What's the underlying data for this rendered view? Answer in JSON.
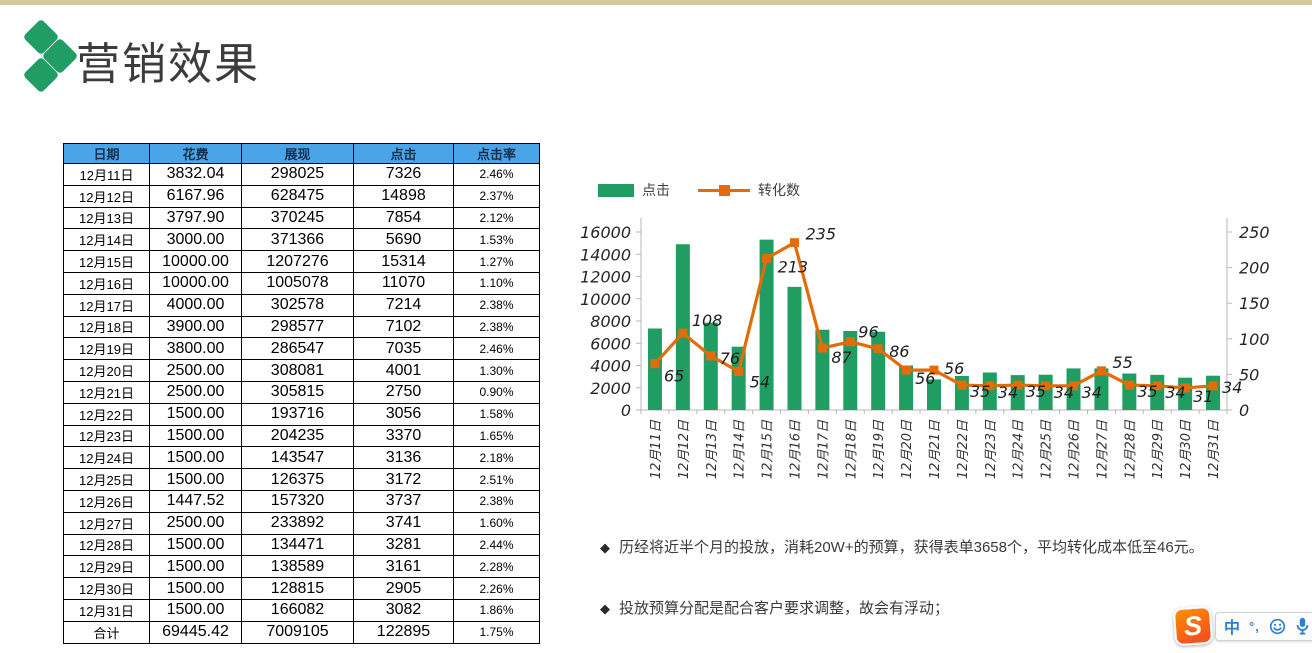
{
  "page": {
    "title": "营销效果"
  },
  "colors": {
    "top_strip": "#d5c89e",
    "accent_green": "#1f9d62",
    "accent_orange": "#e36c0a",
    "header_blue": "#4aa4e8",
    "axis_line": "#b7b7b7"
  },
  "table": {
    "headers": [
      "日期",
      "花费",
      "展现",
      "点击",
      "点击率"
    ],
    "rows": [
      [
        "12月11日",
        "3832.04",
        "298025",
        "7326",
        "2.46%"
      ],
      [
        "12月12日",
        "6167.96",
        "628475",
        "14898",
        "2.37%"
      ],
      [
        "12月13日",
        "3797.90",
        "370245",
        "7854",
        "2.12%"
      ],
      [
        "12月14日",
        "3000.00",
        "371366",
        "5690",
        "1.53%"
      ],
      [
        "12月15日",
        "10000.00",
        "1207276",
        "15314",
        "1.27%"
      ],
      [
        "12月16日",
        "10000.00",
        "1005078",
        "11070",
        "1.10%"
      ],
      [
        "12月17日",
        "4000.00",
        "302578",
        "7214",
        "2.38%"
      ],
      [
        "12月18日",
        "3900.00",
        "298577",
        "7102",
        "2.38%"
      ],
      [
        "12月19日",
        "3800.00",
        "286547",
        "7035",
        "2.46%"
      ],
      [
        "12月20日",
        "2500.00",
        "308081",
        "4001",
        "1.30%"
      ],
      [
        "12月21日",
        "2500.00",
        "305815",
        "2750",
        "0.90%"
      ],
      [
        "12月22日",
        "1500.00",
        "193716",
        "3056",
        "1.58%"
      ],
      [
        "12月23日",
        "1500.00",
        "204235",
        "3370",
        "1.65%"
      ],
      [
        "12月24日",
        "1500.00",
        "143547",
        "3136",
        "2.18%"
      ],
      [
        "12月25日",
        "1500.00",
        "126375",
        "3172",
        "2.51%"
      ],
      [
        "12月26日",
        "1447.52",
        "157320",
        "3737",
        "2.38%"
      ],
      [
        "12月27日",
        "2500.00",
        "233892",
        "3741",
        "1.60%"
      ],
      [
        "12月28日",
        "1500.00",
        "134471",
        "3281",
        "2.44%"
      ],
      [
        "12月29日",
        "1500.00",
        "138589",
        "3161",
        "2.28%"
      ],
      [
        "12月30日",
        "1500.00",
        "128815",
        "2905",
        "2.26%"
      ],
      [
        "12月31日",
        "1500.00",
        "166082",
        "3082",
        "1.86%"
      ]
    ],
    "total_row": [
      "合计",
      "69445.42",
      "7009105",
      "122895",
      "1.75%"
    ]
  },
  "chart_data": {
    "type": "combo",
    "categories": [
      "12月11日",
      "12月12日",
      "12月13日",
      "12月14日",
      "12月15日",
      "12月16日",
      "12月17日",
      "12月18日",
      "12月19日",
      "12月20日",
      "12月21日",
      "12月22日",
      "12月23日",
      "12月24日",
      "12月25日",
      "12月26日",
      "12月27日",
      "12月28日",
      "12月29日",
      "12月30日",
      "12月31日"
    ],
    "series": [
      {
        "name": "点击",
        "type": "bar",
        "axis": "left",
        "color": "#1f9d62",
        "values": [
          7326,
          14898,
          7854,
          5690,
          15314,
          11070,
          7214,
          7102,
          7035,
          4001,
          2750,
          3056,
          3370,
          3136,
          3172,
          3737,
          3741,
          3281,
          3161,
          2905,
          3082
        ]
      },
      {
        "name": "转化数",
        "type": "line",
        "axis": "right",
        "color": "#e36c0a",
        "values": [
          65,
          108,
          76,
          54,
          213,
          235,
          87,
          96,
          86,
          56,
          56,
          35,
          34,
          35,
          34,
          34,
          55,
          35,
          34,
          31,
          34
        ]
      }
    ],
    "left_axis": {
      "min": 0,
      "max": 16000,
      "step": 2000
    },
    "right_axis": {
      "min": 0,
      "max": 250,
      "step": 50
    },
    "grid": false,
    "legend_position": "top-left",
    "data_labels_series": "转化数"
  },
  "notes": {
    "marker": "◆",
    "items": [
      "历经将近半个月的投放，消耗20W+的预算，获得表单3658个，平均转化成本低至46元。",
      "投放预算分配是配合客户要求调整，故会有浮动；"
    ]
  },
  "ime": {
    "logo": "S",
    "mode": "中",
    "punct": "°,"
  }
}
